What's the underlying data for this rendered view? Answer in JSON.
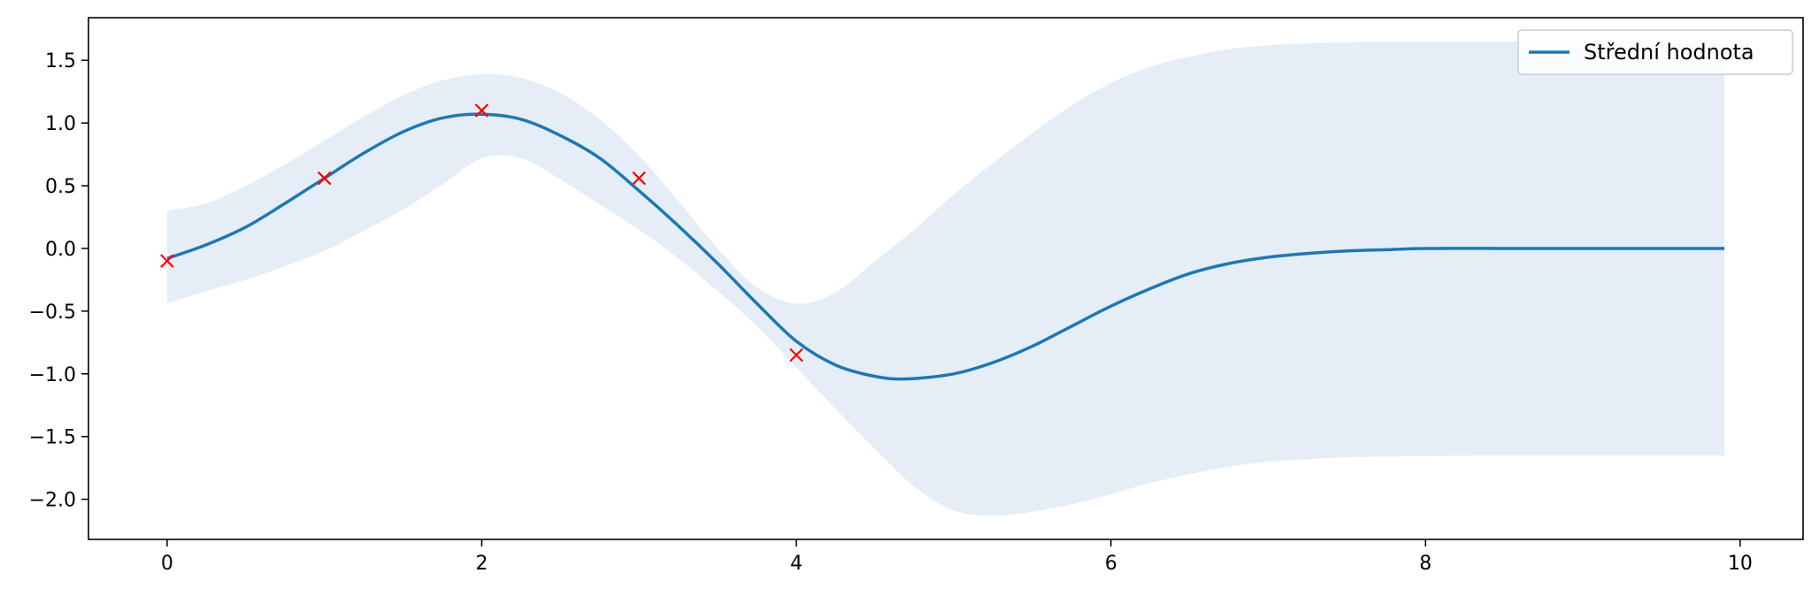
{
  "chart_data": {
    "type": "line",
    "title": "",
    "xlabel": "",
    "ylabel": "",
    "xlim": [
      -0.5,
      10.4
    ],
    "ylim": [
      -2.32,
      1.84
    ],
    "xticks": [
      0,
      2,
      4,
      6,
      8,
      10
    ],
    "yticks": [
      1.5,
      1.0,
      0.5,
      0.0,
      -0.5,
      -1.0,
      -1.5,
      -2.0
    ],
    "xtick_labels": [
      "0",
      "2",
      "4",
      "6",
      "8",
      "10"
    ],
    "ytick_labels": [
      "1.5",
      "1.0",
      "0.5",
      "0.0",
      "−0.5",
      "−1.0",
      "−1.5",
      "−2.0"
    ],
    "grid": false,
    "legend": {
      "position": "top-right",
      "entries": [
        "Střední hodnota"
      ]
    },
    "colors": {
      "mean": "#1f77b4",
      "band": "#dce8f4",
      "observations": "#ff0000"
    },
    "mean": {
      "name": "Střední hodnota",
      "x": [
        0,
        0.25,
        0.5,
        0.75,
        1.0,
        1.25,
        1.5,
        1.75,
        2.0,
        2.25,
        2.5,
        2.75,
        3.0,
        3.25,
        3.5,
        3.75,
        4.0,
        4.25,
        4.5,
        4.7,
        5.0,
        5.25,
        5.5,
        5.75,
        6.0,
        6.25,
        6.5,
        6.75,
        7.0,
        7.25,
        7.5,
        7.75,
        8.0,
        8.5,
        9.0,
        9.5,
        9.9
      ],
      "y": [
        -0.08,
        0.03,
        0.17,
        0.36,
        0.56,
        0.76,
        0.93,
        1.04,
        1.07,
        1.03,
        0.9,
        0.72,
        0.46,
        0.18,
        -0.12,
        -0.44,
        -0.74,
        -0.93,
        -1.02,
        -1.04,
        -1.0,
        -0.91,
        -0.78,
        -0.62,
        -0.46,
        -0.32,
        -0.2,
        -0.12,
        -0.07,
        -0.04,
        -0.02,
        -0.01,
        0.0,
        0.0,
        0.0,
        0.0,
        0.0
      ]
    },
    "confidence_band": {
      "x": [
        0,
        0.25,
        0.5,
        0.75,
        1.0,
        1.25,
        1.5,
        1.75,
        2.0,
        2.25,
        2.5,
        2.75,
        3.0,
        3.25,
        3.5,
        3.75,
        4.0,
        4.25,
        4.5,
        4.75,
        5.0,
        5.25,
        5.5,
        5.75,
        6.0,
        6.25,
        6.5,
        6.75,
        7.0,
        7.25,
        7.5,
        7.75,
        8.0,
        8.5,
        9.0,
        9.5,
        9.9
      ],
      "upper": [
        0.3,
        0.36,
        0.5,
        0.67,
        0.86,
        1.05,
        1.22,
        1.34,
        1.39,
        1.36,
        1.24,
        1.03,
        0.74,
        0.38,
        0.0,
        -0.31,
        -0.44,
        -0.35,
        -0.1,
        0.15,
        0.43,
        0.68,
        0.92,
        1.14,
        1.32,
        1.45,
        1.53,
        1.59,
        1.62,
        1.635,
        1.645,
        1.65,
        1.65,
        1.65,
        1.65,
        1.65,
        1.65
      ],
      "lower": [
        -0.44,
        -0.34,
        -0.25,
        -0.14,
        -0.02,
        0.14,
        0.31,
        0.51,
        0.72,
        0.72,
        0.55,
        0.35,
        0.15,
        -0.08,
        -0.34,
        -0.62,
        -0.95,
        -1.28,
        -1.6,
        -1.9,
        -2.09,
        -2.13,
        -2.1,
        -2.04,
        -1.96,
        -1.87,
        -1.8,
        -1.74,
        -1.7,
        -1.68,
        -1.665,
        -1.66,
        -1.655,
        -1.65,
        -1.65,
        -1.65,
        -1.65
      ]
    },
    "observations": {
      "x": [
        0,
        1,
        2,
        3,
        4
      ],
      "y": [
        -0.1,
        0.56,
        1.1,
        0.56,
        -0.85
      ]
    }
  }
}
